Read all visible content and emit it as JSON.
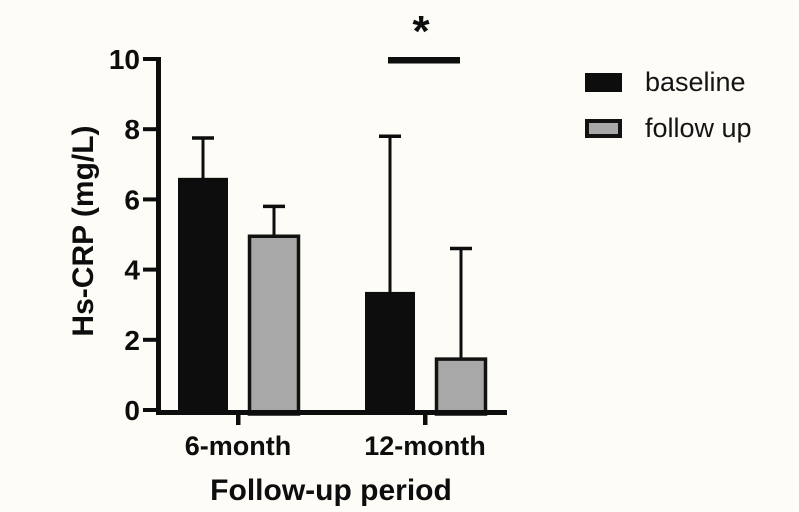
{
  "canvas": {
    "background": "#fdfcf7",
    "text_color": "#0d0d0d"
  },
  "chart_data": {
    "type": "bar",
    "title": "",
    "categories": [
      "6-month",
      "12-month"
    ],
    "series": [
      {
        "name": "baseline",
        "color": "#0d0d0d",
        "border_color": "#0d0d0d",
        "values": [
          6.6,
          3.35
        ],
        "errors_plus": [
          1.15,
          4.45
        ]
      },
      {
        "name": "follow up",
        "color": "#a8a8a8",
        "border_color": "#121212",
        "values": [
          4.95,
          1.45
        ],
        "errors_plus": [
          0.85,
          3.15
        ]
      }
    ],
    "xlabel": "Follow-up period",
    "ylabel": "Hs-CRP (mg/L)",
    "ylim": [
      0,
      10
    ],
    "yticks": [
      0,
      2,
      4,
      6,
      8,
      10
    ],
    "grid": false,
    "legend_position": "right",
    "annotations": [
      {
        "label": "*",
        "category": "12-month",
        "spans": [
          "baseline",
          "follow up"
        ]
      }
    ]
  }
}
